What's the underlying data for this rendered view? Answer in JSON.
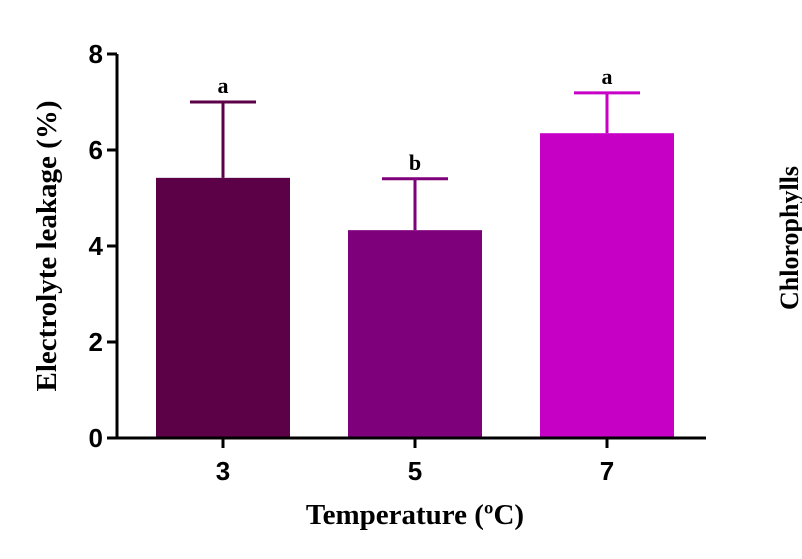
{
  "chart_data": {
    "type": "bar",
    "x_label": "Temperature (ºC)",
    "y_label": "Electrolyte leakage (%)",
    "categories": [
      "3",
      "5",
      "7"
    ],
    "values": [
      5.42,
      4.33,
      6.35
    ],
    "errors": [
      1.58,
      1.07,
      0.84
    ],
    "annotations": [
      "a",
      "b",
      "a"
    ],
    "colors": [
      "#5c0047",
      "#7e007b",
      "#c700c6"
    ],
    "ylim": [
      0,
      8
    ],
    "yticks": [
      0,
      2,
      4,
      6,
      8
    ]
  },
  "side_label": "Chlorophylls"
}
